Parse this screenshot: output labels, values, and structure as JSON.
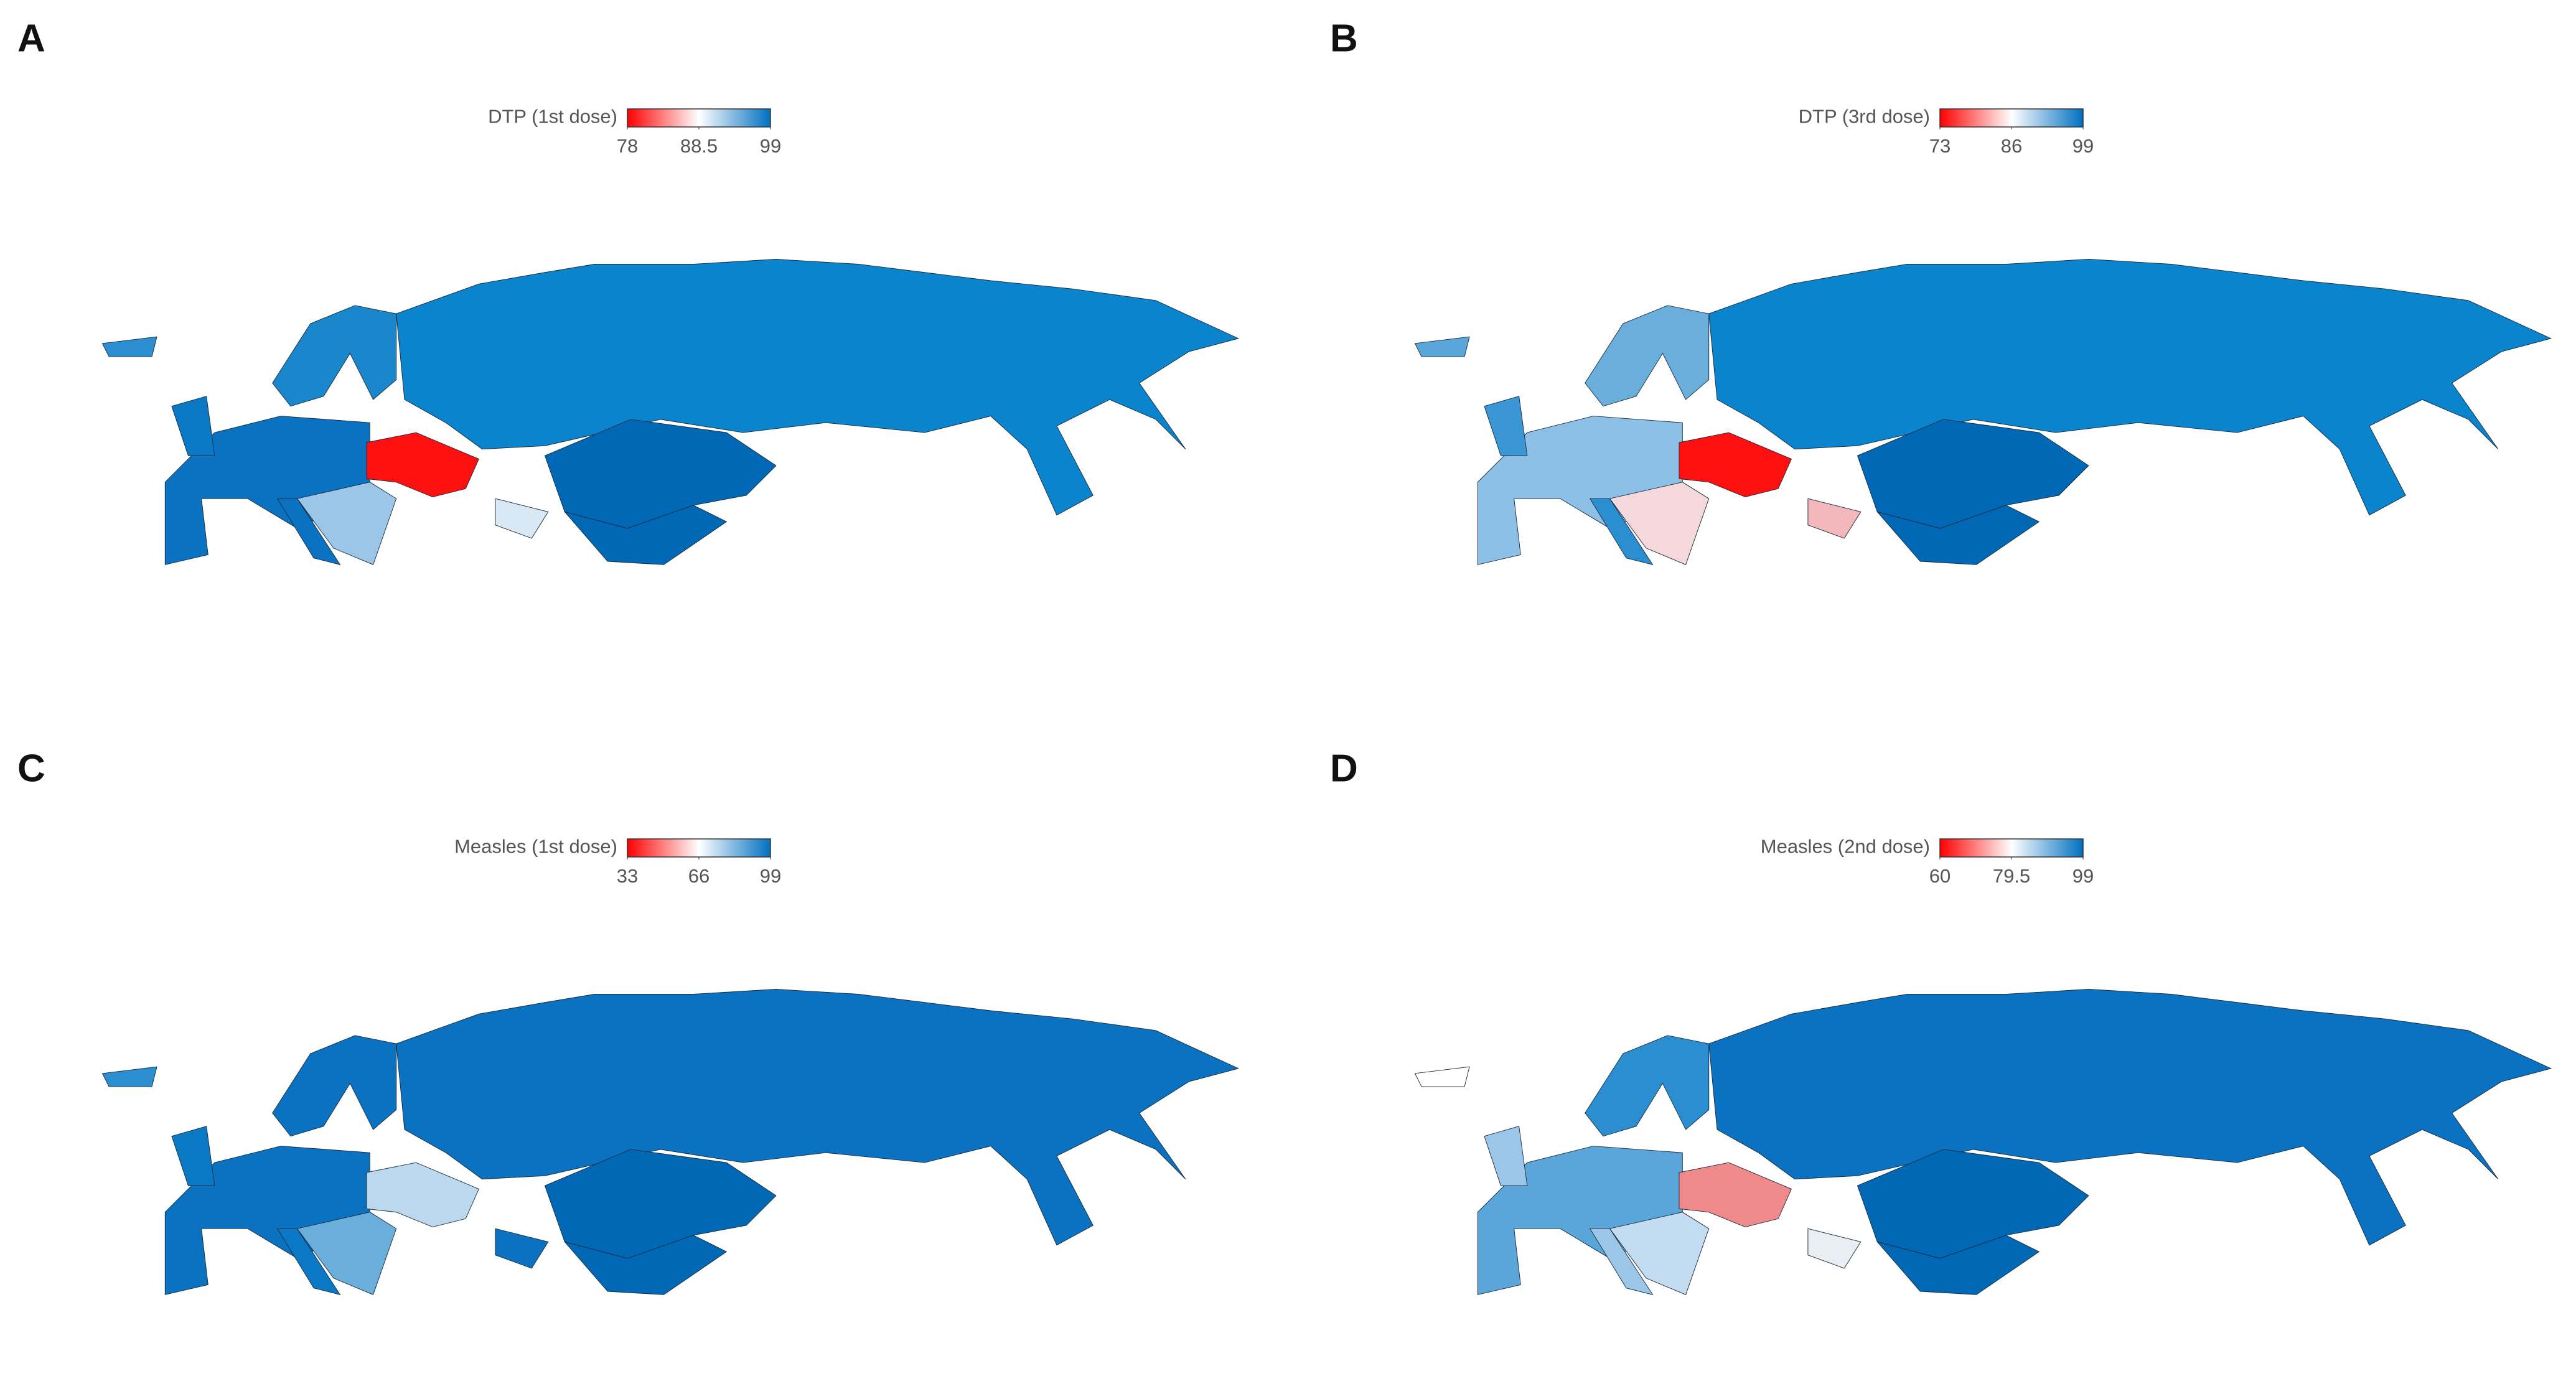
{
  "panels": [
    {
      "label": "A",
      "legend": {
        "title": "DTP (1st dose)",
        "ticks": [
          78,
          88.5,
          99
        ],
        "colors": [
          "#ff0000",
          "#ffffff",
          "#0070c0"
        ]
      }
    },
    {
      "label": "B",
      "legend": {
        "title": "DTP (3rd dose)",
        "ticks": [
          73,
          86,
          99
        ],
        "colors": [
          "#ff0000",
          "#ffffff",
          "#0070c0"
        ]
      }
    },
    {
      "label": "C",
      "legend": {
        "title": "Measles (1st dose)",
        "ticks": [
          33,
          66,
          99
        ],
        "colors": [
          "#ff0000",
          "#ffffff",
          "#0070c0"
        ]
      }
    },
    {
      "label": "D",
      "legend": {
        "title": "Measles (2nd dose)",
        "ticks": [
          60,
          79.5,
          99
        ],
        "colors": [
          "#ff0000",
          "#ffffff",
          "#0070c0"
        ]
      }
    }
  ]
}
